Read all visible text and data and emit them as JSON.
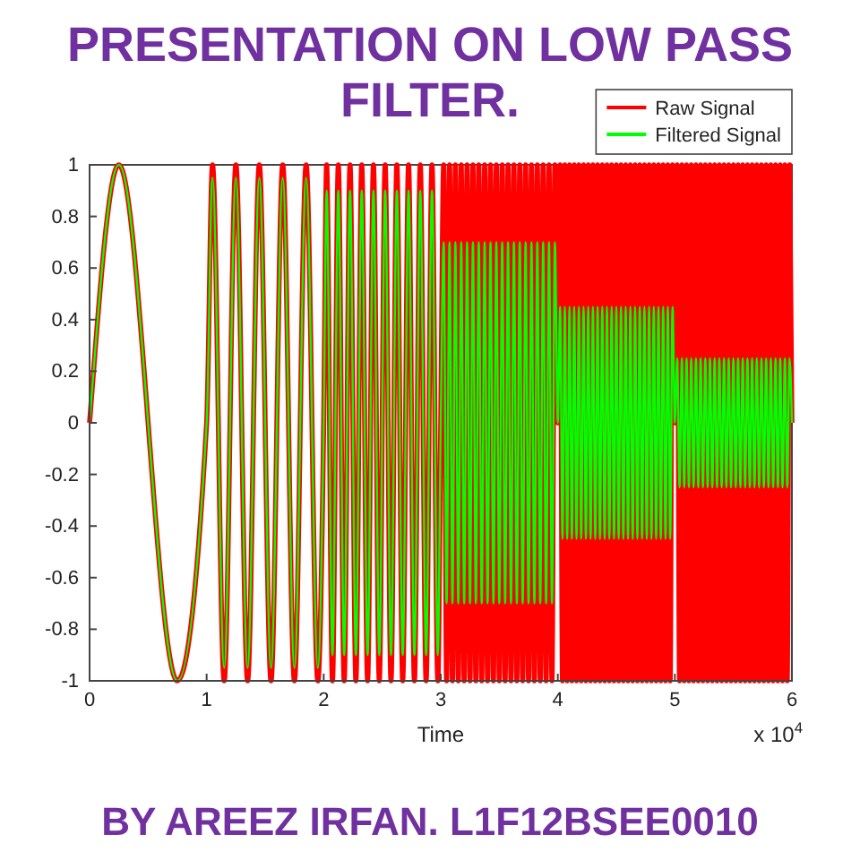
{
  "chart_data": {
    "type": "line",
    "title": "PRESENTATION ON LOW PASS FILTER.",
    "subtitle": "BY AREEZ IRFAN. L1F12BSEE0010",
    "xlabel": "Time",
    "annotations": [
      "x 10$^{4}$"
    ],
    "xlim": [
      0,
      6
    ],
    "xticks": [
      0,
      1,
      2,
      3,
      4,
      5,
      6
    ],
    "ylim": [
      -1,
      1
    ],
    "yticks": [
      -1,
      -0.8,
      -0.6,
      -0.4,
      -0.2,
      0,
      0.2,
      0.4,
      0.6,
      0.8,
      1
    ],
    "legend": "top right",
    "x": [
      0,
      0.25,
      0.75,
      1,
      1.05,
      1.15,
      1.25,
      1.35,
      1.45,
      1.55,
      1.65,
      1.75,
      1.85,
      1.95,
      2,
      2.025,
      2.075,
      2.125,
      2.175,
      2.225,
      2.275,
      2.325,
      2.375,
      2.425,
      2.475,
      2.525,
      2.575,
      2.625,
      2.675,
      2.725,
      2.775,
      2.825,
      2.875,
      2.925,
      2.975,
      3,
      3.025,
      3.05,
      3.075,
      3.1,
      3.125,
      3.15,
      3.175,
      3.2,
      3.225,
      3.25,
      3.275,
      3.3,
      3.325,
      3.35,
      3.375,
      3.4,
      3.425,
      3.45,
      3.475,
      3.5,
      3.525,
      3.55,
      3.575,
      3.6,
      3.625,
      3.65,
      3.675,
      3.7,
      3.725,
      3.75,
      3.775,
      3.8,
      3.825,
      3.85,
      3.875,
      3.9,
      3.925,
      3.95,
      3.975,
      4,
      4.02,
      4.04,
      4.06,
      4.08,
      4.1,
      4.12,
      4.14,
      4.16,
      4.18,
      4.2,
      4.22,
      4.24,
      4.26,
      4.28,
      4.3,
      4.32,
      4.34,
      4.36,
      4.38,
      4.4,
      4.42,
      4.44,
      4.46,
      4.48,
      4.5,
      4.52,
      4.54,
      4.56,
      4.58,
      4.6,
      4.62,
      4.64,
      4.66,
      4.68,
      4.7,
      4.72,
      4.74,
      4.76,
      4.78,
      4.8,
      4.82,
      4.84,
      4.86,
      4.88,
      4.9,
      4.92,
      4.94,
      4.96,
      4.98,
      5,
      5.02,
      5.04,
      5.06,
      5.08,
      5.1,
      5.12,
      5.14,
      5.16,
      5.18,
      5.2,
      5.22,
      5.24,
      5.26,
      5.28,
      5.3,
      5.32,
      5.34,
      5.36,
      5.38,
      5.4,
      5.42,
      5.44,
      5.46,
      5.48,
      5.5,
      5.52,
      5.54,
      5.56,
      5.58,
      5.6,
      5.62,
      5.64,
      5.66,
      5.68,
      5.7,
      5.72,
      5.74,
      5.76,
      5.78,
      5.8,
      5.82,
      5.84,
      5.86,
      5.88,
      5.9,
      5.92,
      5.94,
      5.96,
      5.98,
      6
    ],
    "series": [
      {
        "name": "Raw Signal",
        "color": "#ff0000",
        "values": [
          0,
          1,
          -1,
          0,
          1,
          -1,
          1,
          -1,
          1,
          -1,
          1,
          -1,
          1,
          -1,
          0,
          1,
          -1,
          1,
          -1,
          1,
          -1,
          1,
          -1,
          1,
          -1,
          1,
          -1,
          1,
          -1,
          1,
          -1,
          1,
          -1,
          1,
          -1,
          0,
          1,
          -1,
          1,
          -1,
          1,
          -1,
          1,
          -1,
          1,
          -1,
          1,
          -1,
          1,
          -1,
          1,
          -1,
          1,
          -1,
          1,
          -1,
          1,
          -1,
          1,
          -1,
          1,
          -1,
          1,
          -1,
          1,
          -1,
          1,
          -1,
          1,
          -1,
          1,
          -1,
          1,
          -1,
          1,
          0,
          1,
          -1,
          1,
          -1,
          1,
          -1,
          1,
          -1,
          1,
          -1,
          1,
          -1,
          1,
          -1,
          1,
          -1,
          1,
          -1,
          1,
          -1,
          1,
          -1,
          1,
          -1,
          1,
          -1,
          1,
          -1,
          1,
          -1,
          1,
          -1,
          1,
          -1,
          1,
          -1,
          1,
          -1,
          1,
          -1,
          1,
          -1,
          1,
          -1,
          1,
          -1,
          1,
          -1,
          1,
          0,
          1,
          -1,
          1,
          -1,
          1,
          -1,
          1,
          -1,
          1,
          -1,
          1,
          -1,
          1,
          -1,
          1,
          -1,
          1,
          -1,
          1,
          -1,
          1,
          -1,
          1,
          -1,
          1,
          -1,
          1,
          -1,
          1,
          -1,
          1,
          -1,
          1,
          -1,
          1,
          -1,
          1,
          -1,
          1,
          -1,
          1,
          -1,
          1,
          -1,
          1,
          -1,
          1,
          -1,
          1,
          0
        ]
      },
      {
        "name": "Filtered Signal",
        "color": "#00ff00",
        "values": [
          0,
          1,
          -1,
          0,
          0.95,
          -0.95,
          0.95,
          -0.95,
          0.95,
          -0.95,
          0.95,
          -0.95,
          0.95,
          -0.95,
          0,
          0.9,
          -0.9,
          0.9,
          -0.9,
          0.9,
          -0.9,
          0.9,
          -0.9,
          0.9,
          -0.9,
          0.9,
          -0.9,
          0.9,
          -0.9,
          0.9,
          -0.9,
          0.9,
          -0.9,
          0.9,
          -0.9,
          0,
          0.7,
          -0.7,
          0.7,
          -0.7,
          0.7,
          -0.7,
          0.7,
          -0.7,
          0.7,
          -0.7,
          0.7,
          -0.7,
          0.7,
          -0.7,
          0.7,
          -0.7,
          0.7,
          -0.7,
          0.7,
          -0.7,
          0.7,
          -0.7,
          0.7,
          -0.7,
          0.7,
          -0.7,
          0.7,
          -0.7,
          0.7,
          -0.7,
          0.7,
          -0.7,
          0.7,
          -0.7,
          0.7,
          -0.7,
          0.7,
          -0.7,
          0.7,
          0,
          0.45,
          -0.45,
          0.45,
          -0.45,
          0.45,
          -0.45,
          0.45,
          -0.45,
          0.45,
          -0.45,
          0.45,
          -0.45,
          0.45,
          -0.45,
          0.45,
          -0.45,
          0.45,
          -0.45,
          0.45,
          -0.45,
          0.45,
          -0.45,
          0.45,
          -0.45,
          0.45,
          -0.45,
          0.45,
          -0.45,
          0.45,
          -0.45,
          0.45,
          -0.45,
          0.45,
          -0.45,
          0.45,
          -0.45,
          0.45,
          -0.45,
          0.45,
          -0.45,
          0.45,
          -0.45,
          0.45,
          -0.45,
          0.45,
          -0.45,
          0.45,
          -0.45,
          0.45,
          0,
          0.25,
          -0.25,
          0.25,
          -0.25,
          0.25,
          -0.25,
          0.25,
          -0.25,
          0.25,
          -0.25,
          0.25,
          -0.25,
          0.25,
          -0.25,
          0.25,
          -0.25,
          0.25,
          -0.25,
          0.25,
          -0.25,
          0.25,
          -0.25,
          0.25,
          -0.25,
          0.25,
          -0.25,
          0.25,
          -0.25,
          0.25,
          -0.25,
          0.25,
          -0.25,
          0.25,
          -0.25,
          0.25,
          -0.25,
          0.25,
          -0.25,
          0.25,
          -0.25,
          0.25,
          -0.25,
          0.25,
          -0.25,
          0.25,
          -0.25,
          0.25,
          -0.25,
          0.25,
          0
        ]
      }
    ]
  }
}
